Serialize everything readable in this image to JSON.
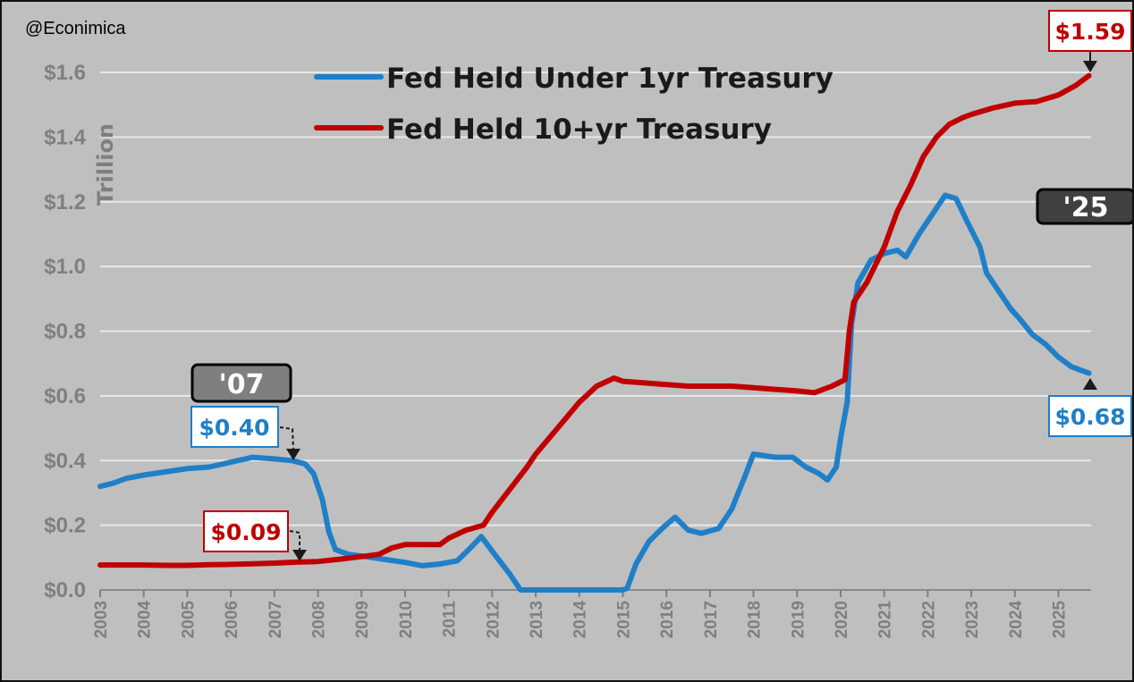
{
  "watermark": "@Econimica",
  "colors": {
    "background": "#bfbfbf",
    "grid": "#e8e8e8",
    "under1yr": "#1f7fc8",
    "tenplus": "#c00000",
    "tick": "#7f7f7f",
    "yearBox": "#7f7f7f"
  },
  "chart_data": {
    "type": "line",
    "title": "",
    "xlabel": "",
    "ylabel": "Trillion",
    "xlim": [
      2003,
      2025.75
    ],
    "ylim": [
      0,
      1.6
    ],
    "y_ticks": [
      0,
      0.2,
      0.4,
      0.6,
      0.8,
      1.0,
      1.2,
      1.4,
      1.6
    ],
    "y_tick_labels": [
      "$0.0",
      "$0.2",
      "$0.4",
      "$0.6",
      "$0.8",
      "$1.0",
      "$1.2",
      "$1.4",
      "$1.6"
    ],
    "x_ticks": [
      2003,
      2004,
      2005,
      2006,
      2007,
      2008,
      2009,
      2010,
      2011,
      2012,
      2013,
      2014,
      2015,
      2016,
      2017,
      2018,
      2019,
      2020,
      2021,
      2022,
      2023,
      2024,
      2025
    ],
    "x_tick_labels": [
      "2003",
      "2004",
      "2005",
      "2006",
      "2007",
      "2008",
      "2009",
      "2010",
      "2011",
      "2012",
      "2013",
      "2014",
      "2015",
      "2016",
      "2017",
      "2018",
      "2019",
      "2020",
      "2021",
      "2022",
      "2023",
      "2024",
      "2025"
    ],
    "grid": true,
    "legend_position": "top-center",
    "series": [
      {
        "name": "Fed Held Under 1yr Treasury",
        "color": "#1f7fc8",
        "points": [
          [
            2003.0,
            0.32
          ],
          [
            2003.3,
            0.33
          ],
          [
            2003.6,
            0.345
          ],
          [
            2004.0,
            0.355
          ],
          [
            2004.5,
            0.365
          ],
          [
            2005.0,
            0.375
          ],
          [
            2005.5,
            0.38
          ],
          [
            2006.0,
            0.395
          ],
          [
            2006.5,
            0.41
          ],
          [
            2007.0,
            0.405
          ],
          [
            2007.4,
            0.4
          ],
          [
            2007.7,
            0.39
          ],
          [
            2007.9,
            0.36
          ],
          [
            2008.1,
            0.28
          ],
          [
            2008.25,
            0.18
          ],
          [
            2008.4,
            0.125
          ],
          [
            2008.7,
            0.11
          ],
          [
            2009.0,
            0.105
          ],
          [
            2009.5,
            0.095
          ],
          [
            2010.0,
            0.085
          ],
          [
            2010.4,
            0.075
          ],
          [
            2010.8,
            0.08
          ],
          [
            2011.2,
            0.09
          ],
          [
            2011.5,
            0.13
          ],
          [
            2011.75,
            0.165
          ],
          [
            2012.0,
            0.12
          ],
          [
            2012.4,
            0.05
          ],
          [
            2012.65,
            0.0
          ],
          [
            2013.0,
            0.0
          ],
          [
            2014.0,
            0.0
          ],
          [
            2014.5,
            0.0
          ],
          [
            2015.0,
            0.0
          ],
          [
            2015.1,
            0.005
          ],
          [
            2015.3,
            0.08
          ],
          [
            2015.6,
            0.15
          ],
          [
            2015.9,
            0.19
          ],
          [
            2016.2,
            0.225
          ],
          [
            2016.5,
            0.185
          ],
          [
            2016.8,
            0.175
          ],
          [
            2017.2,
            0.19
          ],
          [
            2017.5,
            0.25
          ],
          [
            2017.8,
            0.35
          ],
          [
            2018.0,
            0.42
          ],
          [
            2018.5,
            0.41
          ],
          [
            2018.9,
            0.41
          ],
          [
            2019.2,
            0.38
          ],
          [
            2019.5,
            0.36
          ],
          [
            2019.7,
            0.34
          ],
          [
            2019.9,
            0.38
          ],
          [
            2020.0,
            0.47
          ],
          [
            2020.15,
            0.58
          ],
          [
            2020.25,
            0.82
          ],
          [
            2020.4,
            0.95
          ],
          [
            2020.7,
            1.02
          ],
          [
            2021.0,
            1.04
          ],
          [
            2021.3,
            1.05
          ],
          [
            2021.5,
            1.03
          ],
          [
            2021.8,
            1.1
          ],
          [
            2022.1,
            1.16
          ],
          [
            2022.4,
            1.22
          ],
          [
            2022.65,
            1.21
          ],
          [
            2022.9,
            1.14
          ],
          [
            2023.2,
            1.06
          ],
          [
            2023.35,
            0.98
          ],
          [
            2023.6,
            0.93
          ],
          [
            2023.9,
            0.87
          ],
          [
            2024.1,
            0.84
          ],
          [
            2024.4,
            0.79
          ],
          [
            2024.7,
            0.76
          ],
          [
            2025.0,
            0.72
          ],
          [
            2025.3,
            0.69
          ],
          [
            2025.7,
            0.67
          ]
        ]
      },
      {
        "name": "Fed Held 10+yr Treasury",
        "color": "#c00000",
        "points": [
          [
            2003.0,
            0.077
          ],
          [
            2004.0,
            0.077
          ],
          [
            2004.5,
            0.076
          ],
          [
            2005.0,
            0.076
          ],
          [
            2005.5,
            0.078
          ],
          [
            2006.0,
            0.079
          ],
          [
            2006.5,
            0.081
          ],
          [
            2007.0,
            0.083
          ],
          [
            2007.5,
            0.086
          ],
          [
            2008.0,
            0.088
          ],
          [
            2008.5,
            0.095
          ],
          [
            2009.0,
            0.103
          ],
          [
            2009.4,
            0.11
          ],
          [
            2009.7,
            0.13
          ],
          [
            2010.0,
            0.14
          ],
          [
            2010.4,
            0.14
          ],
          [
            2010.8,
            0.14
          ],
          [
            2011.0,
            0.16
          ],
          [
            2011.4,
            0.185
          ],
          [
            2011.8,
            0.2
          ],
          [
            2012.0,
            0.24
          ],
          [
            2012.4,
            0.31
          ],
          [
            2012.8,
            0.38
          ],
          [
            2013.0,
            0.42
          ],
          [
            2013.5,
            0.5
          ],
          [
            2014.0,
            0.58
          ],
          [
            2014.4,
            0.63
          ],
          [
            2014.8,
            0.655
          ],
          [
            2015.0,
            0.645
          ],
          [
            2015.5,
            0.64
          ],
          [
            2016.0,
            0.635
          ],
          [
            2016.5,
            0.63
          ],
          [
            2017.0,
            0.63
          ],
          [
            2017.5,
            0.63
          ],
          [
            2018.0,
            0.625
          ],
          [
            2018.5,
            0.62
          ],
          [
            2019.0,
            0.615
          ],
          [
            2019.4,
            0.61
          ],
          [
            2019.8,
            0.63
          ],
          [
            2020.1,
            0.65
          ],
          [
            2020.2,
            0.8
          ],
          [
            2020.3,
            0.89
          ],
          [
            2020.6,
            0.95
          ],
          [
            2021.0,
            1.06
          ],
          [
            2021.3,
            1.17
          ],
          [
            2021.6,
            1.25
          ],
          [
            2021.9,
            1.34
          ],
          [
            2022.2,
            1.4
          ],
          [
            2022.5,
            1.44
          ],
          [
            2022.8,
            1.46
          ],
          [
            2023.0,
            1.47
          ],
          [
            2023.5,
            1.49
          ],
          [
            2024.0,
            1.505
          ],
          [
            2024.5,
            1.51
          ],
          [
            2025.0,
            1.53
          ],
          [
            2025.4,
            1.56
          ],
          [
            2025.7,
            1.59
          ]
        ]
      }
    ],
    "annotations": [
      {
        "id": "blue-2007",
        "text": "$0.40",
        "x": 2007.4,
        "y": 0.4,
        "color": "#1f7fc8"
      },
      {
        "id": "red-2007",
        "text": "$0.09",
        "x": 2007.55,
        "y": 0.09,
        "color": "#c00000"
      },
      {
        "id": "red-2025",
        "text": "$1.59",
        "x": 2025.7,
        "y": 1.59,
        "color": "#c00000"
      },
      {
        "id": "blue-2025",
        "text": "$0.68",
        "x": 2025.7,
        "y": 0.67,
        "color": "#1f7fc8"
      }
    ],
    "year_labels": [
      {
        "text": "'07",
        "near_year": 2007
      },
      {
        "text": "'25",
        "near_year": 2025
      }
    ]
  }
}
